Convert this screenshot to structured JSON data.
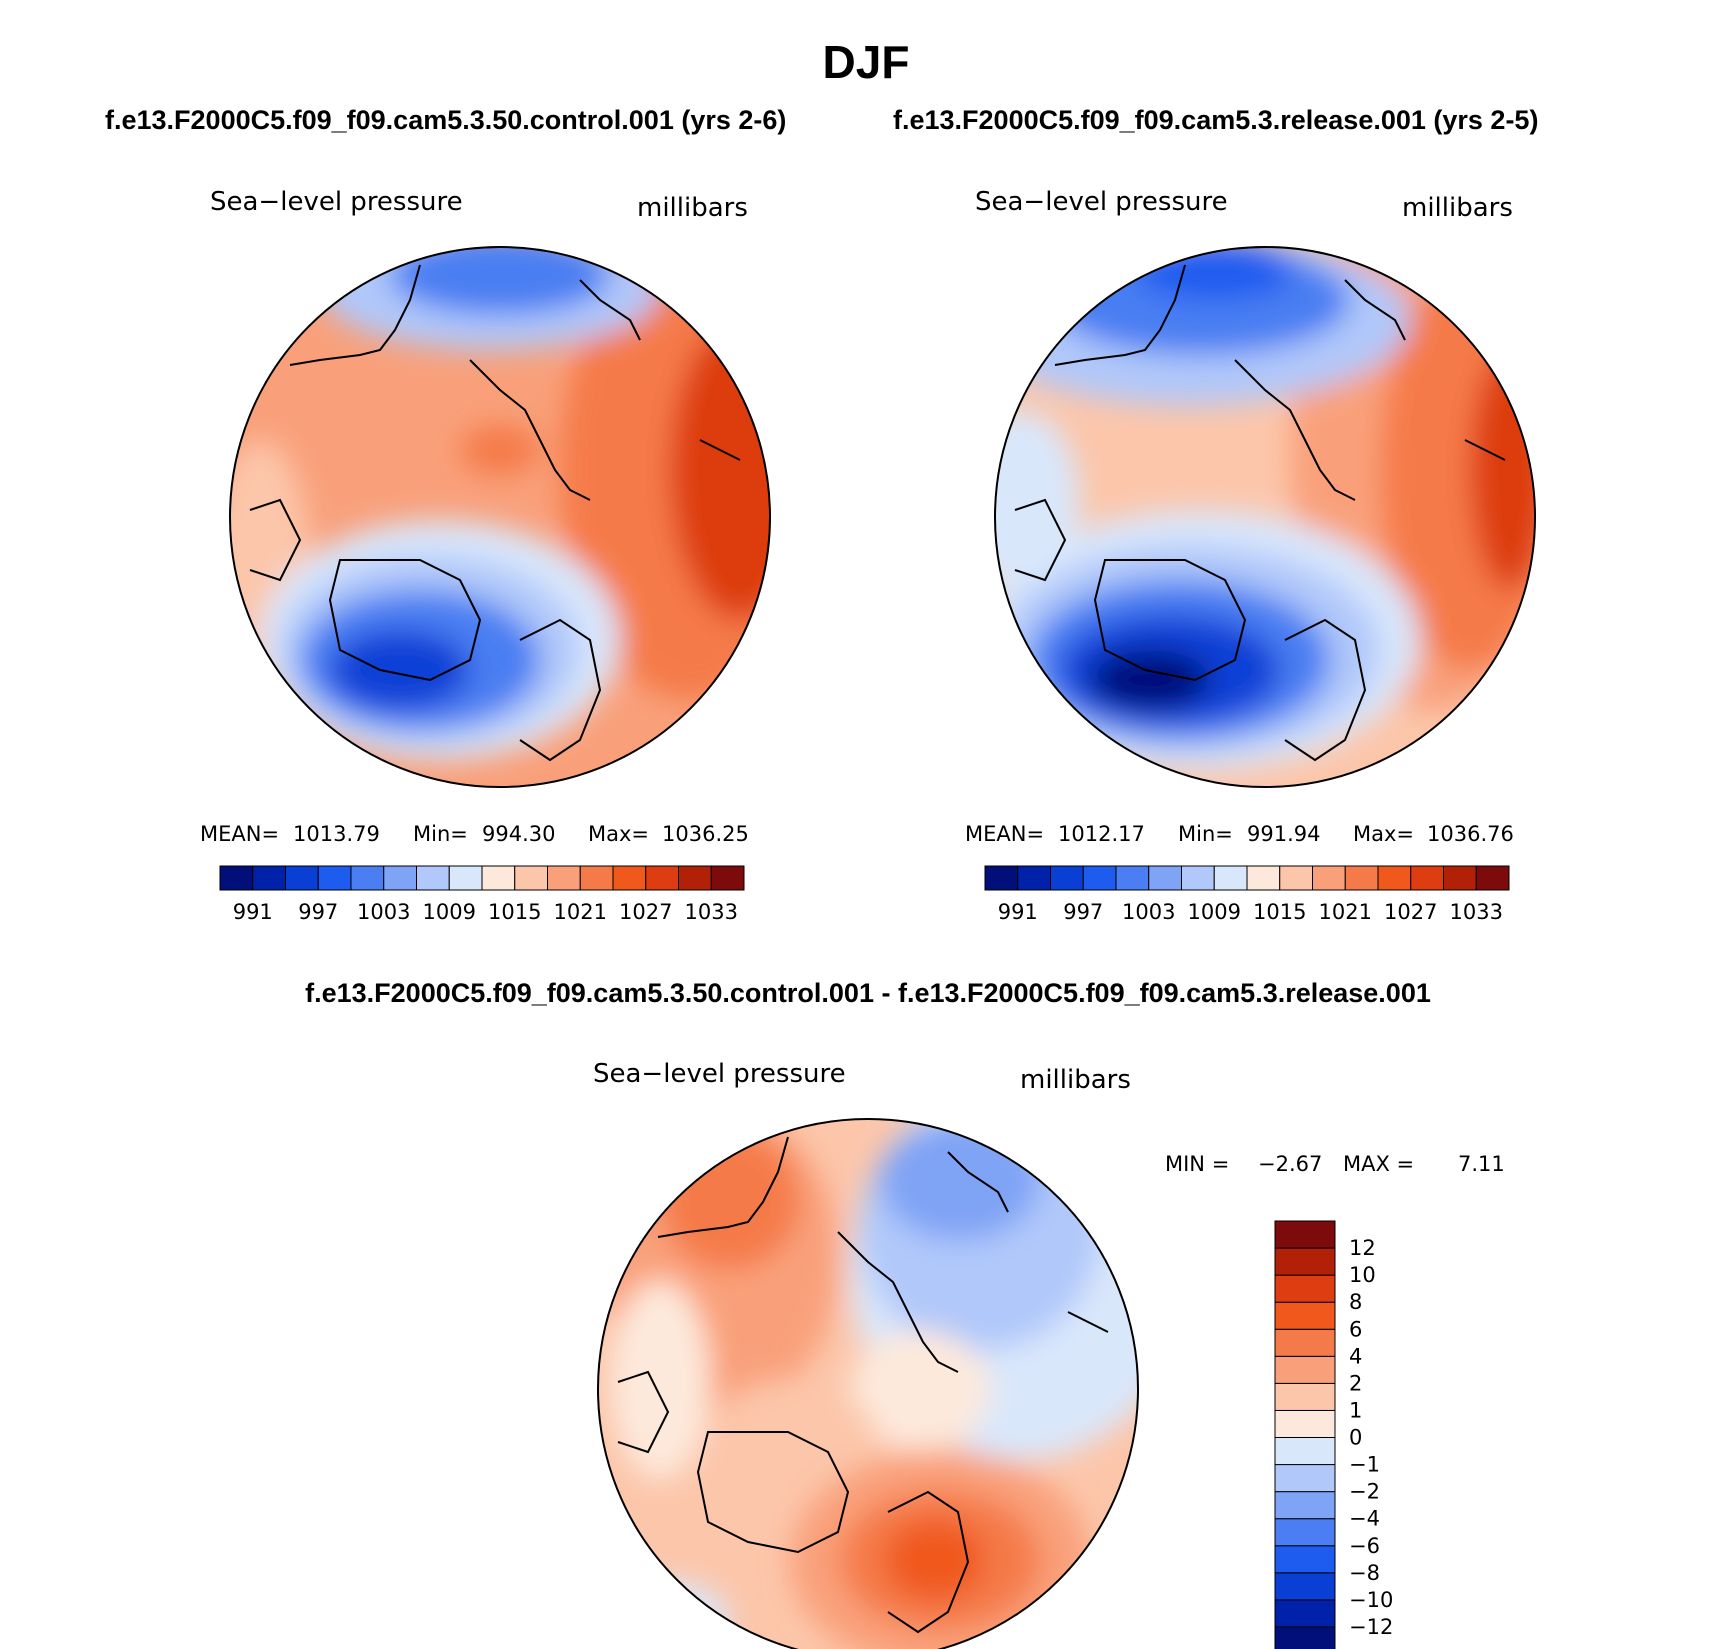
{
  "figure": {
    "title": "DJF",
    "panel_left_title": "f.e13.F2000C5.f09_f09.cam5.3.50.control.001 (yrs 2-6)",
    "panel_right_title": "f.e13.F2000C5.f09_f09.cam5.3.release.001 (yrs 2-5)",
    "diff_title": "f.e13.F2000C5.f09_f09.cam5.3.50.control.001 - f.e13.F2000C5.f09_f09.cam5.3.release.001"
  },
  "panels": [
    {
      "variable": "Sea−level pressure",
      "units": "millibars",
      "stats": {
        "mean_label": "MEAN=",
        "mean": "1013.79",
        "min_label": "Min=",
        "min": "994.30",
        "max_label": "Max=",
        "max": "1036.25"
      }
    },
    {
      "variable": "Sea−level pressure",
      "units": "millibars",
      "stats": {
        "mean_label": "MEAN=",
        "mean": "1012.17",
        "min_label": "Min=",
        "min": "991.94",
        "max_label": "Max=",
        "max": "1036.76"
      }
    },
    {
      "variable": "Sea−level pressure",
      "units": "millibars",
      "stats": {
        "min_label": "MIN =",
        "min": "−2.67",
        "max_label": "MAX =",
        "max": "7.11"
      }
    }
  ],
  "colorbar_abs": {
    "colors": [
      "#000f7a",
      "#0022aa",
      "#0a3fd6",
      "#1e5cf0",
      "#4a7ef2",
      "#7fa3f5",
      "#b0c8fa",
      "#d9e7fb",
      "#fde9db",
      "#fcc6aa",
      "#f9a07a",
      "#f57a4a",
      "#f0581c",
      "#dd3d10",
      "#b32008",
      "#7d0b0b"
    ],
    "labels": [
      "991",
      "997",
      "1003",
      "1009",
      "1015",
      "1021",
      "1027",
      "1033"
    ]
  },
  "colorbar_diff": {
    "colors": [
      "#000f7a",
      "#0022aa",
      "#0a3fd6",
      "#1e5cf0",
      "#4a7ef2",
      "#7fa3f5",
      "#b0c8fa",
      "#d9e7fb",
      "#fde9db",
      "#fcc6aa",
      "#f9a07a",
      "#f57a4a",
      "#f0581c",
      "#dd3d10",
      "#b32008",
      "#7d0b0b"
    ],
    "labels": [
      "−12",
      "−10",
      "−8",
      "−6",
      "−4",
      "−2",
      "−1",
      "0",
      "1",
      "2",
      "4",
      "6",
      "8",
      "10",
      "12"
    ]
  }
}
